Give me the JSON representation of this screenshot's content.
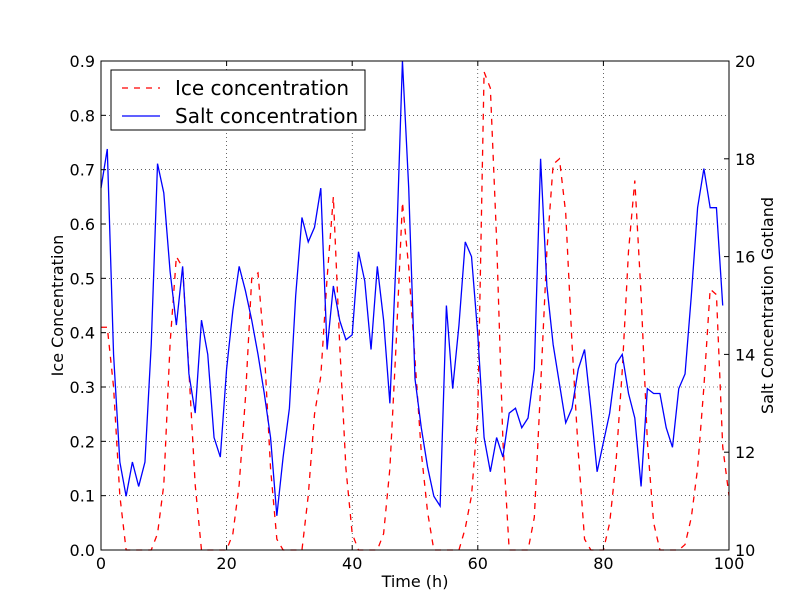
{
  "chart_data": {
    "type": "line",
    "title": "",
    "xlabel": "Time (h)",
    "ylabel_left": "Ice Concentration",
    "ylabel_right": "Salt Concentration Gotland",
    "xlim": [
      0,
      100
    ],
    "ylim_left": [
      0.0,
      0.9
    ],
    "ylim_right": [
      10,
      20
    ],
    "x_ticks": [
      0,
      20,
      40,
      60,
      80,
      100
    ],
    "y_left_ticks": [
      0.0,
      0.1,
      0.2,
      0.3,
      0.4,
      0.5,
      0.6,
      0.7,
      0.8,
      0.9
    ],
    "y_right_ticks": [
      10,
      12,
      14,
      16,
      18,
      20
    ],
    "grid": true,
    "legend_position": "upper-left",
    "series": [
      {
        "name": "Ice concentration",
        "axis": "left",
        "color": "#ff0000",
        "style": "dashed",
        "x": [
          0,
          1,
          2,
          3,
          4,
          5,
          6,
          7,
          8,
          9,
          10,
          11,
          12,
          13,
          14,
          15,
          16,
          17,
          18,
          19,
          20,
          21,
          22,
          23,
          24,
          25,
          26,
          27,
          28,
          29,
          30,
          31,
          32,
          33,
          34,
          35,
          36,
          37,
          38,
          39,
          40,
          41,
          42,
          43,
          44,
          45,
          46,
          47,
          48,
          49,
          50,
          51,
          52,
          53,
          54,
          55,
          56,
          57,
          58,
          59,
          60,
          61,
          62,
          63,
          64,
          65,
          66,
          67,
          68,
          69,
          70,
          71,
          72,
          73,
          74,
          75,
          76,
          77,
          78,
          79,
          80,
          81,
          82,
          83,
          84,
          85,
          86,
          87,
          88,
          89,
          90,
          91,
          92,
          93,
          94,
          95,
          96,
          97,
          98,
          99
        ],
        "values": [
          0.41,
          0.41,
          0.3,
          0.1,
          0.0,
          0.0,
          0.0,
          0.0,
          0.0,
          0.03,
          0.12,
          0.38,
          0.54,
          0.52,
          0.33,
          0.12,
          0.0,
          0.0,
          0.0,
          0.0,
          0.0,
          0.03,
          0.12,
          0.28,
          0.5,
          0.51,
          0.37,
          0.15,
          0.02,
          0.0,
          0.0,
          0.0,
          0.0,
          0.1,
          0.25,
          0.32,
          0.5,
          0.65,
          0.38,
          0.15,
          0.03,
          0.0,
          0.0,
          0.0,
          0.0,
          0.03,
          0.15,
          0.38,
          0.64,
          0.52,
          0.35,
          0.18,
          0.07,
          0.0,
          0.0,
          0.0,
          0.0,
          0.0,
          0.04,
          0.1,
          0.25,
          0.88,
          0.85,
          0.57,
          0.2,
          0.0,
          0.0,
          0.0,
          0.0,
          0.06,
          0.3,
          0.55,
          0.71,
          0.72,
          0.62,
          0.38,
          0.18,
          0.02,
          0.0,
          0.0,
          0.0,
          0.05,
          0.16,
          0.33,
          0.55,
          0.68,
          0.47,
          0.2,
          0.05,
          0.0,
          0.0,
          0.0,
          0.0,
          0.01,
          0.06,
          0.15,
          0.3,
          0.48,
          0.47,
          0.19
        ],
        "x_end": 100,
        "value_end": 0.1
      },
      {
        "name": "Salt concentration",
        "axis": "right",
        "color": "#0000ff",
        "style": "solid",
        "x": [
          0,
          1,
          2,
          3,
          4,
          5,
          6,
          7,
          8,
          9,
          10,
          11,
          12,
          13,
          14,
          15,
          16,
          17,
          18,
          19,
          20,
          21,
          22,
          23,
          24,
          25,
          26,
          27,
          28,
          29,
          30,
          31,
          32,
          33,
          34,
          35,
          36,
          37,
          38,
          39,
          40,
          41,
          42,
          43,
          44,
          45,
          46,
          47,
          48,
          49,
          50,
          51,
          52,
          53,
          54,
          55,
          56,
          57,
          58,
          59,
          60,
          61,
          62,
          63,
          64,
          65,
          66,
          67,
          68,
          69,
          70,
          71,
          72,
          73,
          74,
          75,
          76,
          77,
          78,
          79,
          80,
          81,
          82,
          83,
          84,
          85,
          86,
          87,
          88,
          89,
          90,
          91,
          92,
          93,
          94,
          95,
          96,
          97,
          98,
          99
        ],
        "values": [
          17.4,
          18.2,
          14.0,
          11.8,
          11.1,
          11.8,
          11.3,
          11.8,
          14.2,
          17.9,
          17.3,
          15.7,
          14.6,
          15.8,
          13.6,
          12.8,
          14.7,
          14.0,
          12.3,
          11.9,
          13.7,
          14.9,
          15.8,
          15.3,
          14.7,
          14.0,
          13.2,
          12.3,
          10.7,
          11.9,
          12.9,
          15.2,
          16.8,
          16.3,
          16.6,
          17.4,
          14.1,
          15.4,
          14.7,
          14.3,
          14.4,
          16.1,
          15.5,
          14.1,
          15.8,
          14.7,
          13.0,
          16.0,
          20.0,
          17.4,
          13.5,
          12.5,
          11.7,
          11.1,
          10.9,
          15.0,
          13.3,
          14.6,
          16.3,
          16.0,
          14.4,
          12.3,
          11.6,
          12.3,
          11.9,
          12.8,
          12.9,
          12.5,
          12.7,
          13.7,
          18.0,
          15.4,
          14.2,
          13.4,
          12.6,
          12.9,
          13.7,
          14.1,
          12.9,
          11.6,
          12.2,
          12.8,
          13.8,
          14.0,
          13.2,
          12.7,
          11.3,
          13.3,
          13.2,
          13.2,
          12.5,
          12.1,
          13.3,
          13.6,
          15.2,
          17.0,
          17.8,
          17.0,
          17.0,
          15.0
        ],
        "x_end": null,
        "value_end": null
      }
    ]
  }
}
